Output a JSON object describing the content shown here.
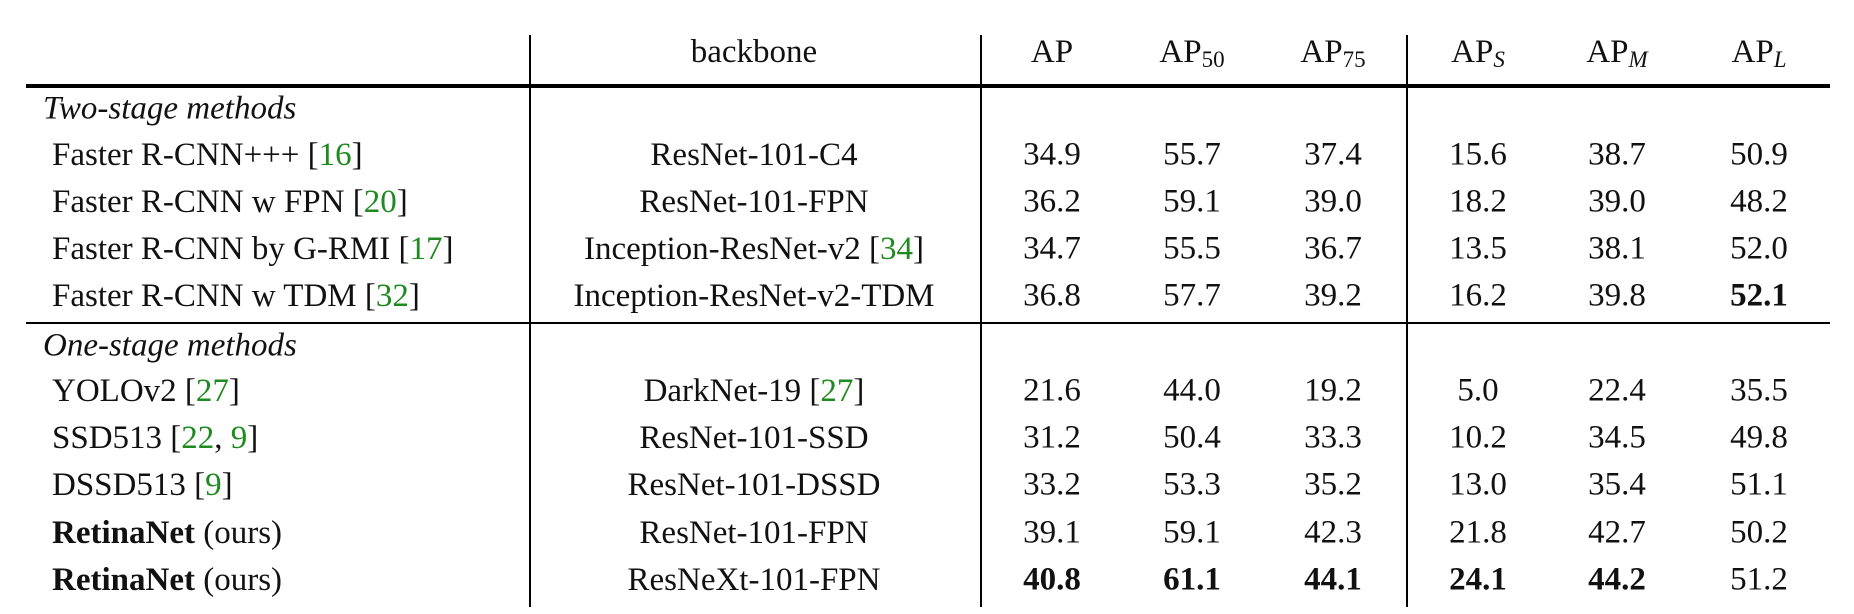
{
  "header": {
    "columns": [
      {
        "text": "backbone"
      },
      {
        "text": "AP"
      },
      {
        "text": "AP",
        "sub": "50"
      },
      {
        "text": "AP",
        "sub": "75"
      },
      {
        "text": "AP",
        "sub": "S",
        "sub_italic": true
      },
      {
        "text": "AP",
        "sub": "M",
        "sub_italic": true
      },
      {
        "text": "AP",
        "sub": "L",
        "sub_italic": true
      }
    ]
  },
  "sections": [
    {
      "title": "Two-stage methods",
      "rows": [
        {
          "method": [
            {
              "text": "Faster R-CNN+++ ["
            },
            {
              "text": "16",
              "ref": true
            },
            {
              "text": "]"
            }
          ],
          "backbone": [
            {
              "text": "ResNet-101-C4"
            }
          ],
          "values": [
            "34.9",
            "55.7",
            "37.4",
            "15.6",
            "38.7",
            "50.9"
          ],
          "bold_values": []
        },
        {
          "method": [
            {
              "text": "Faster R-CNN w FPN ["
            },
            {
              "text": "20",
              "ref": true
            },
            {
              "text": "]"
            }
          ],
          "backbone": [
            {
              "text": "ResNet-101-FPN"
            }
          ],
          "values": [
            "36.2",
            "59.1",
            "39.0",
            "18.2",
            "39.0",
            "48.2"
          ],
          "bold_values": []
        },
        {
          "method": [
            {
              "text": "Faster R-CNN by G-RMI ["
            },
            {
              "text": "17",
              "ref": true
            },
            {
              "text": "]"
            }
          ],
          "backbone": [
            {
              "text": "Inception-ResNet-v2 ["
            },
            {
              "text": "34",
              "ref": true
            },
            {
              "text": "]"
            }
          ],
          "values": [
            "34.7",
            "55.5",
            "36.7",
            "13.5",
            "38.1",
            "52.0"
          ],
          "bold_values": []
        },
        {
          "method": [
            {
              "text": "Faster R-CNN w TDM ["
            },
            {
              "text": "32",
              "ref": true
            },
            {
              "text": "]"
            }
          ],
          "backbone": [
            {
              "text": "Inception-ResNet-v2-TDM"
            }
          ],
          "values": [
            "36.8",
            "57.7",
            "39.2",
            "16.2",
            "39.8",
            "52.1"
          ],
          "bold_values": [
            5
          ]
        }
      ]
    },
    {
      "title": "One-stage methods",
      "rows": [
        {
          "method": [
            {
              "text": "YOLOv2 ["
            },
            {
              "text": "27",
              "ref": true
            },
            {
              "text": "]"
            }
          ],
          "backbone": [
            {
              "text": "DarkNet-19 ["
            },
            {
              "text": "27",
              "ref": true
            },
            {
              "text": "]"
            }
          ],
          "values": [
            "21.6",
            "44.0",
            "19.2",
            "5.0",
            "22.4",
            "35.5"
          ],
          "bold_values": []
        },
        {
          "method": [
            {
              "text": "SSD513 ["
            },
            {
              "text": "22",
              "ref": true
            },
            {
              "text": ", "
            },
            {
              "text": "9",
              "ref": true
            },
            {
              "text": "]"
            }
          ],
          "backbone": [
            {
              "text": "ResNet-101-SSD"
            }
          ],
          "values": [
            "31.2",
            "50.4",
            "33.3",
            "10.2",
            "34.5",
            "49.8"
          ],
          "bold_values": []
        },
        {
          "method": [
            {
              "text": "DSSD513 ["
            },
            {
              "text": "9",
              "ref": true
            },
            {
              "text": "]"
            }
          ],
          "backbone": [
            {
              "text": "ResNet-101-DSSD"
            }
          ],
          "values": [
            "33.2",
            "53.3",
            "35.2",
            "13.0",
            "35.4",
            "51.1"
          ],
          "bold_values": []
        },
        {
          "method": [
            {
              "text": "RetinaNet",
              "bold": true
            },
            {
              "text": " (ours)"
            }
          ],
          "backbone": [
            {
              "text": "ResNet-101-FPN"
            }
          ],
          "values": [
            "39.1",
            "59.1",
            "42.3",
            "21.8",
            "42.7",
            "50.2"
          ],
          "bold_values": []
        },
        {
          "method": [
            {
              "text": "RetinaNet",
              "bold": true
            },
            {
              "text": " (ours)"
            }
          ],
          "backbone": [
            {
              "text": "ResNeXt-101-FPN"
            }
          ],
          "values": [
            "40.8",
            "61.1",
            "44.1",
            "24.1",
            "44.2",
            "51.2"
          ],
          "bold_values": [
            0,
            1,
            2,
            3,
            4
          ]
        }
      ]
    }
  ]
}
